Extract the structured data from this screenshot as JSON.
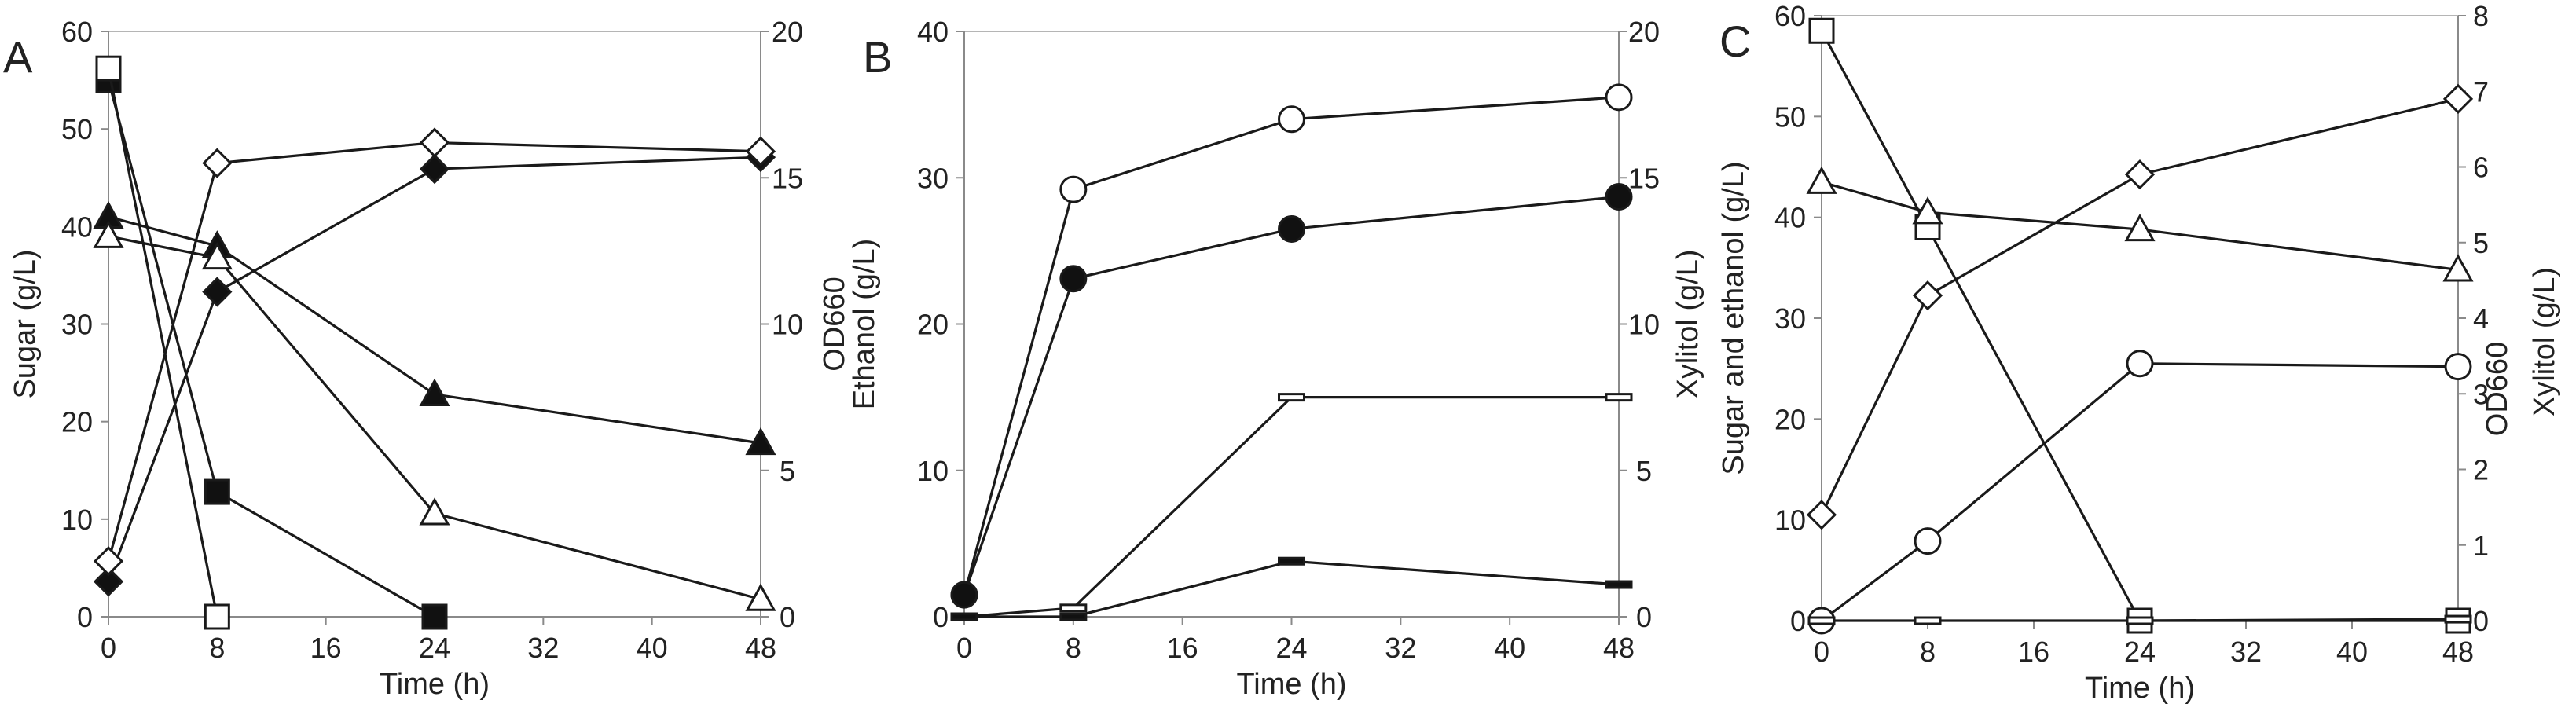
{
  "chart_data": [
    {
      "panel": "A",
      "type": "line",
      "xlabel": "Time (h)",
      "ylabel_left": "Sugar (g/L)",
      "ylabel_right": "OD660",
      "xlim": [
        0,
        48
      ],
      "ylim_left": [
        0,
        60
      ],
      "ylim_right": [
        0,
        20
      ],
      "xticks": [
        0,
        8,
        16,
        24,
        32,
        40,
        48
      ],
      "yticks_left": [
        0,
        10,
        20,
        30,
        40,
        50,
        60
      ],
      "yticks_right": [
        0,
        5,
        10,
        15,
        20
      ],
      "x_tick_labels": [
        "0",
        "8",
        "16",
        "24",
        "32",
        "40",
        "48"
      ],
      "y_left_tick_labels": [
        "0",
        "10",
        "20",
        "30",
        "40",
        "50",
        "60"
      ],
      "y_right_tick_labels": [
        "0",
        "5",
        "10",
        "15",
        "20"
      ],
      "series": [
        {
          "marker": "square-filled",
          "axis": "left",
          "x": [
            0,
            8,
            24
          ],
          "y": [
            55,
            12.8,
            0
          ]
        },
        {
          "marker": "square-open",
          "axis": "left",
          "x": [
            0,
            8
          ],
          "y": [
            56.2,
            0
          ]
        },
        {
          "marker": "triangle-filled",
          "axis": "left",
          "x": [
            0,
            8,
            24,
            48
          ],
          "y": [
            41,
            38,
            22.8,
            17.8
          ]
        },
        {
          "marker": "triangle-open",
          "axis": "left",
          "x": [
            0,
            8,
            24,
            48
          ],
          "y": [
            39,
            36.8,
            10.6,
            1.8
          ]
        },
        {
          "marker": "diamond-filled",
          "axis": "right",
          "x": [
            0,
            8,
            24,
            48
          ],
          "y": [
            1.2,
            11.1,
            15.3,
            15.7
          ]
        },
        {
          "marker": "diamond-open",
          "axis": "right",
          "x": [
            0,
            8,
            24,
            48
          ],
          "y": [
            1.9,
            15.5,
            16.2,
            15.9
          ]
        }
      ]
    },
    {
      "panel": "B",
      "type": "line",
      "xlabel": "Time (h)",
      "ylabel_left": "Ethanol (g/L)",
      "ylabel_right": "Xylitol (g/L)",
      "xlim": [
        0,
        48
      ],
      "ylim_left": [
        0,
        40
      ],
      "ylim_right": [
        0,
        20
      ],
      "xticks": [
        0,
        8,
        16,
        24,
        32,
        40,
        48
      ],
      "yticks_left": [
        0,
        10,
        20,
        30,
        40
      ],
      "yticks_right": [
        0,
        5,
        10,
        15,
        20
      ],
      "x_tick_labels": [
        "0",
        "8",
        "16",
        "24",
        "32",
        "40",
        "48"
      ],
      "y_left_tick_labels": [
        "0",
        "10",
        "20",
        "30",
        "40"
      ],
      "y_right_tick_labels": [
        "0",
        "5",
        "10",
        "15",
        "20"
      ],
      "series": [
        {
          "marker": "circle-open",
          "axis": "left",
          "x": [
            0,
            8,
            24,
            48
          ],
          "y": [
            1.5,
            29.2,
            34,
            35.5
          ]
        },
        {
          "marker": "circle-filled",
          "axis": "left",
          "x": [
            0,
            8,
            24,
            48
          ],
          "y": [
            1.5,
            23.1,
            26.5,
            28.7
          ]
        },
        {
          "marker": "bar-open",
          "axis": "right",
          "x": [
            0,
            8,
            24,
            48
          ],
          "y": [
            0,
            0.3,
            7.5,
            7.5
          ]
        },
        {
          "marker": "bar-filled",
          "axis": "right",
          "x": [
            0,
            8,
            24,
            48
          ],
          "y": [
            0,
            0,
            1.9,
            1.1
          ]
        }
      ]
    },
    {
      "panel": "C",
      "type": "line",
      "xlabel": "Time (h)",
      "ylabel_left": "Sugar and ethanol (g/L)",
      "ylabel_right": "OD660",
      "ylabel_right_2": "Xylitol (g/L)",
      "xlim": [
        0,
        48
      ],
      "ylim_left": [
        0,
        60
      ],
      "ylim_right": [
        0,
        8
      ],
      "xticks": [
        0,
        8,
        16,
        24,
        32,
        40,
        48
      ],
      "yticks_left": [
        0,
        10,
        20,
        30,
        40,
        50,
        60
      ],
      "yticks_right": [
        0,
        1,
        2,
        3,
        4,
        5,
        6,
        7,
        8
      ],
      "x_tick_labels": [
        "0",
        "8",
        "16",
        "24",
        "32",
        "40",
        "48"
      ],
      "y_left_tick_labels": [
        "0",
        "10",
        "20",
        "30",
        "40",
        "50",
        "60"
      ],
      "y_right_tick_labels": [
        "0",
        "1",
        "2",
        "3",
        "4",
        "5",
        "6",
        "7",
        "8"
      ],
      "series": [
        {
          "marker": "square-open",
          "axis": "left",
          "x": [
            0,
            8,
            24,
            48
          ],
          "y": [
            58.5,
            39,
            0,
            0
          ]
        },
        {
          "marker": "triangle-open",
          "axis": "left",
          "x": [
            0,
            8,
            24,
            48
          ],
          "y": [
            43.5,
            40.5,
            38.8,
            34.8
          ]
        },
        {
          "marker": "diamond-open",
          "axis": "right",
          "x": [
            0,
            8,
            24,
            48
          ],
          "y": [
            1.4,
            4.3,
            5.9,
            6.9
          ]
        },
        {
          "marker": "circle-open",
          "axis": "left",
          "x": [
            0,
            8,
            24,
            48
          ],
          "y": [
            0,
            7.9,
            25.5,
            25.2
          ]
        },
        {
          "marker": "bar-open",
          "axis": "right",
          "x": [
            0,
            8,
            24,
            48
          ],
          "y": [
            0,
            0,
            0,
            0.02
          ]
        }
      ]
    }
  ]
}
